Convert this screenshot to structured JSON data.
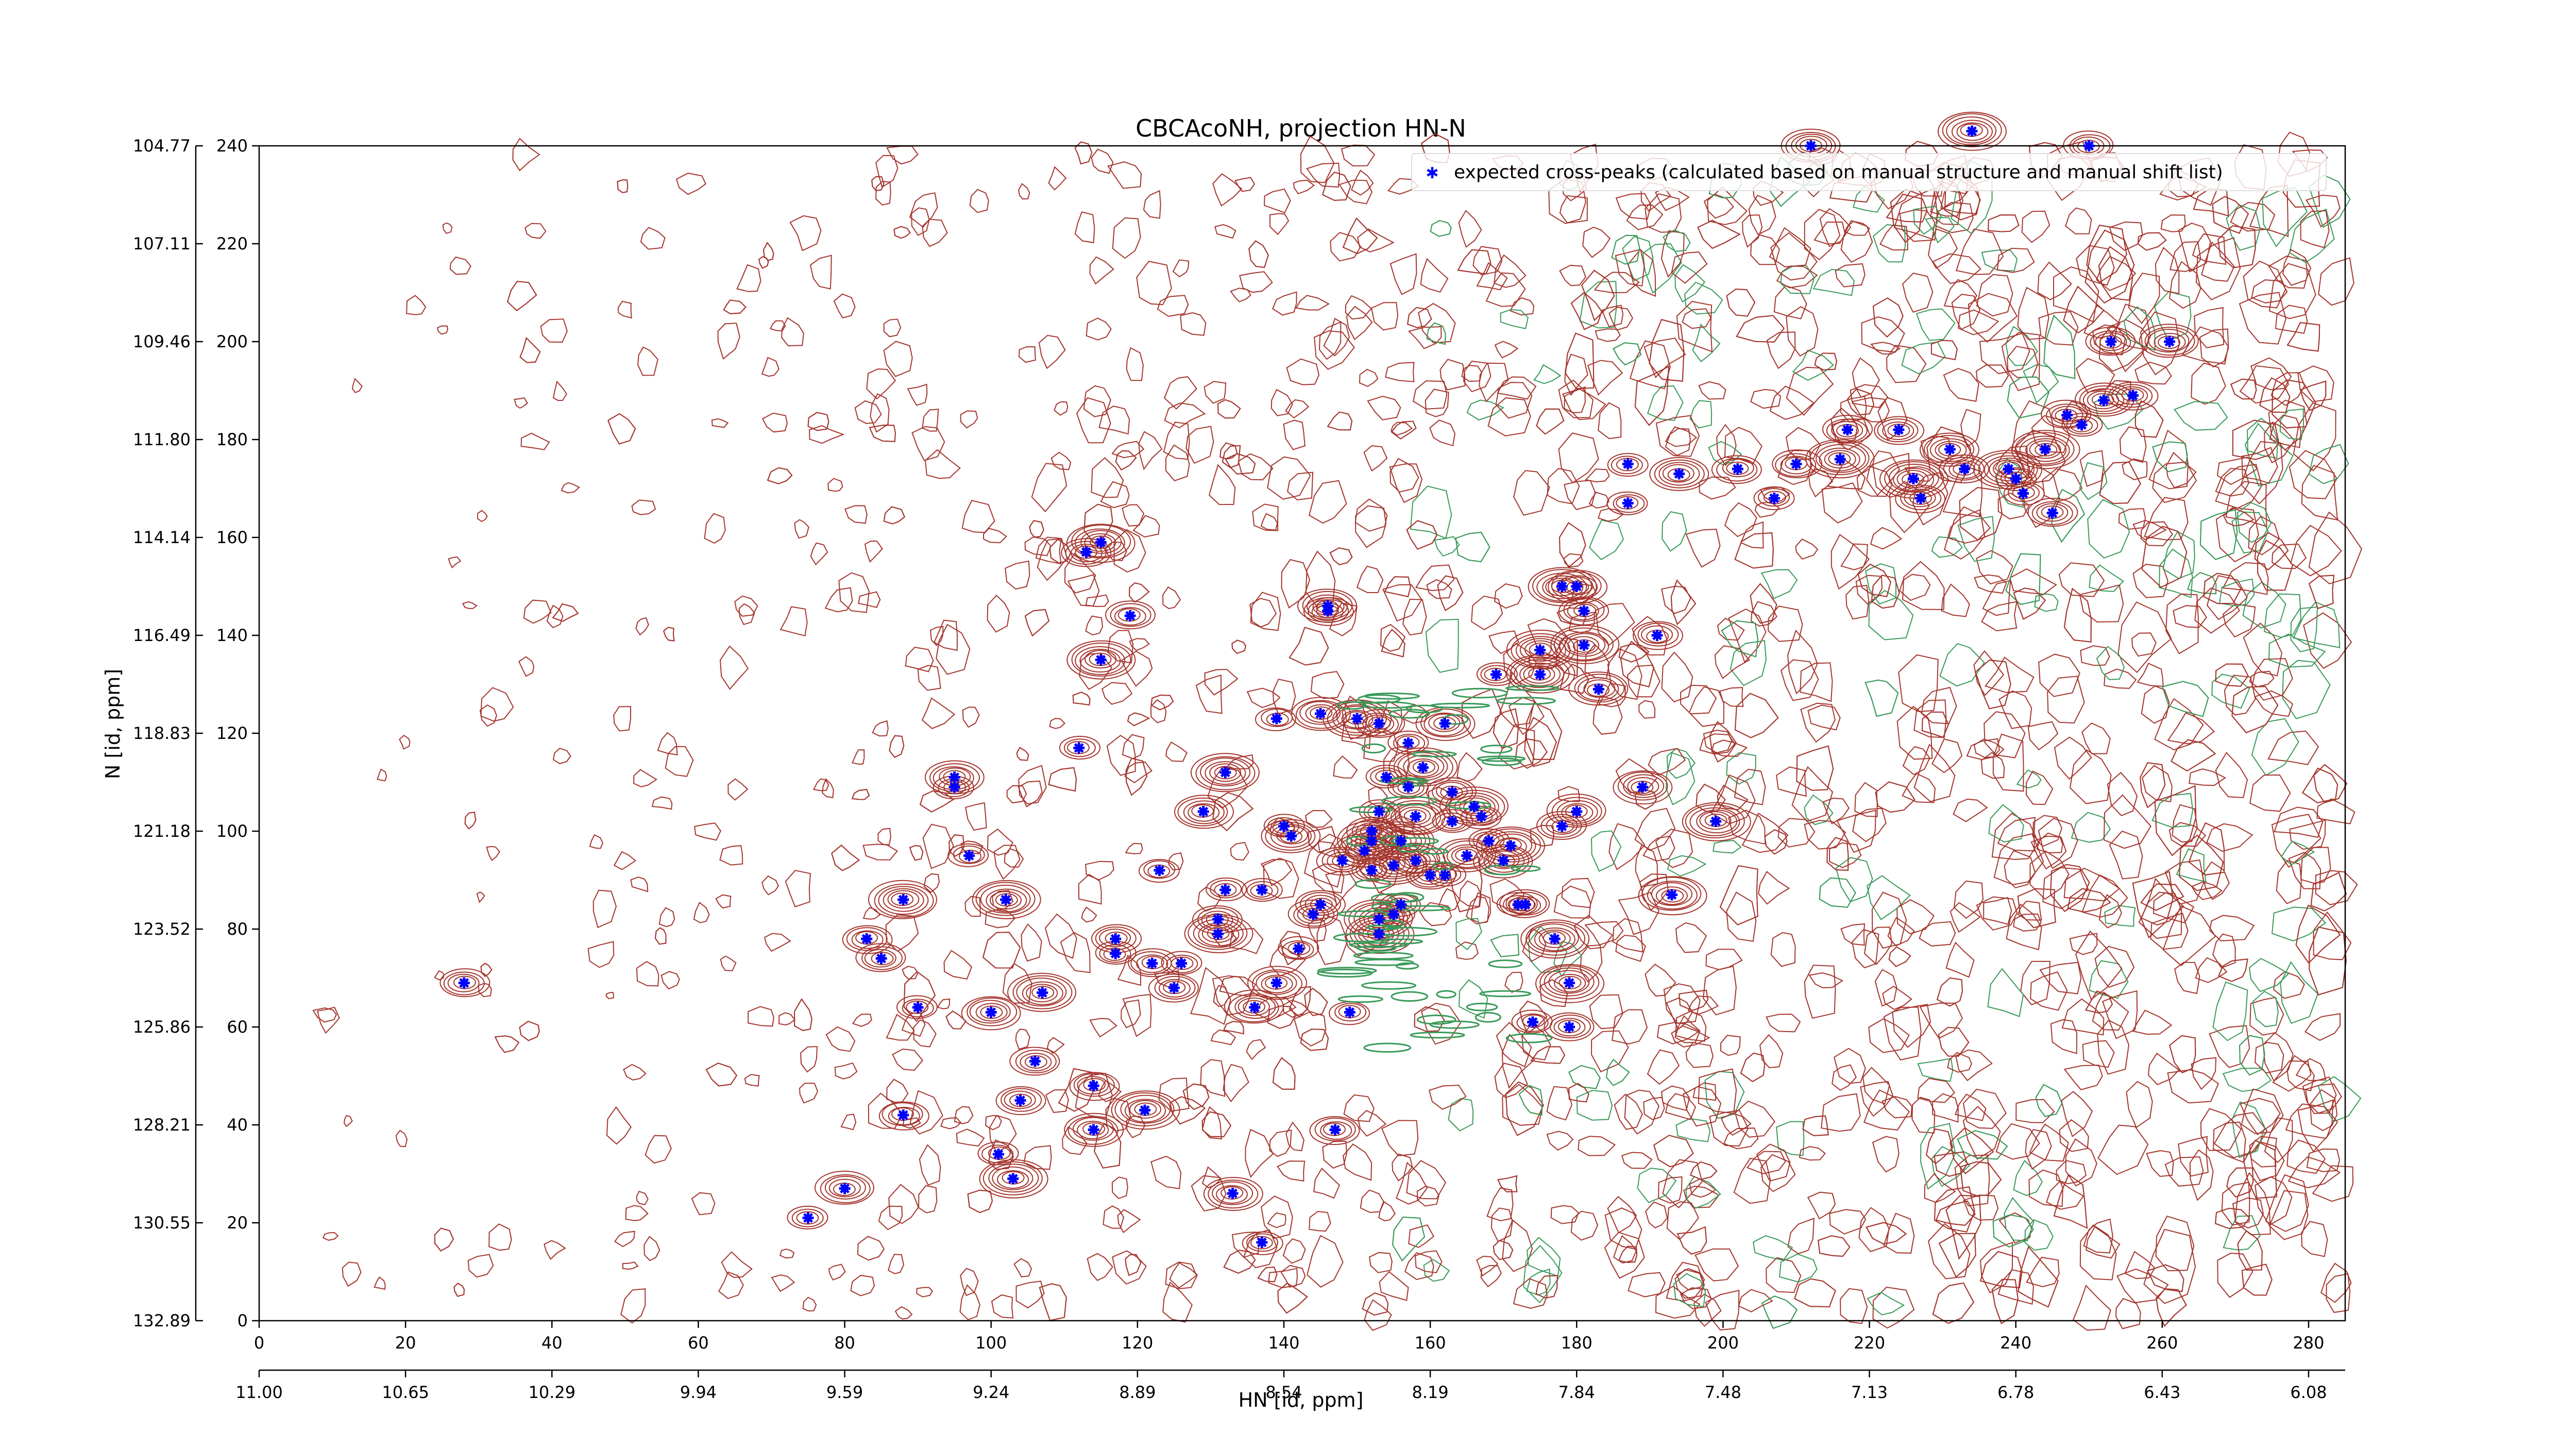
{
  "chart_data": {
    "type": "scatter",
    "title": "CBCAcoNH, projection HN-N",
    "xlabel": "HN [id, ppm]",
    "ylabel": "N [id, ppm]",
    "xlim": [
      0,
      285
    ],
    "ylim": [
      0,
      240
    ],
    "x_ticks": [
      0,
      20,
      40,
      60,
      80,
      100,
      120,
      140,
      160,
      180,
      200,
      220,
      240,
      260,
      280
    ],
    "y_ticks": [
      0,
      20,
      40,
      60,
      80,
      100,
      120,
      140,
      160,
      180,
      200,
      220,
      240
    ],
    "hn_ppm_ticks": [
      "11.00",
      "10.65",
      "10.29",
      "9.94",
      "9.59",
      "9.24",
      "8.89",
      "8.54",
      "8.19",
      "7.84",
      "7.48",
      "7.13",
      "6.78",
      "6.43",
      "6.08"
    ],
    "n_ppm_ticks": [
      "132.89",
      "130.55",
      "128.21",
      "125.86",
      "123.52",
      "121.18",
      "118.83",
      "116.49",
      "114.14",
      "111.80",
      "109.46",
      "107.11",
      "104.77"
    ],
    "legend": {
      "position": "top-right",
      "entries": [
        "expected cross-peaks (calculated based on manual structure and manual shift list)"
      ]
    },
    "colors": {
      "peaks": "#0000ff",
      "contour_positive": "#a5362e",
      "contour_negative": "#3a9a5a"
    },
    "series": [
      {
        "name": "expected cross-peaks (calculated based on manual structure and manual shift list)",
        "points": [
          [
            28,
            69
          ],
          [
            75,
            21
          ],
          [
            80,
            27
          ],
          [
            83,
            78
          ],
          [
            85,
            74
          ],
          [
            88,
            42
          ],
          [
            88,
            86
          ],
          [
            90,
            64
          ],
          [
            95,
            109
          ],
          [
            95,
            111
          ],
          [
            97,
            95
          ],
          [
            100,
            63
          ],
          [
            101,
            34
          ],
          [
            103,
            29
          ],
          [
            102,
            86
          ],
          [
            104,
            45
          ],
          [
            106,
            53
          ],
          [
            107,
            67
          ],
          [
            112,
            117
          ],
          [
            113,
            157
          ],
          [
            114,
            48
          ],
          [
            114,
            39
          ],
          [
            115,
            135
          ],
          [
            115,
            159
          ],
          [
            117,
            75
          ],
          [
            117,
            78
          ],
          [
            119,
            144
          ],
          [
            121,
            43
          ],
          [
            122,
            73
          ],
          [
            123,
            92
          ],
          [
            125,
            68
          ],
          [
            126,
            73
          ],
          [
            129,
            104
          ],
          [
            131,
            79
          ],
          [
            131,
            82
          ],
          [
            132,
            88
          ],
          [
            132,
            112
          ],
          [
            133,
            26
          ],
          [
            136,
            64
          ],
          [
            137,
            16
          ],
          [
            137,
            88
          ],
          [
            139,
            69
          ],
          [
            139,
            123
          ],
          [
            140,
            101
          ],
          [
            141,
            99
          ],
          [
            142,
            76
          ],
          [
            144,
            83
          ],
          [
            145,
            85
          ],
          [
            145,
            124
          ],
          [
            146,
            145
          ],
          [
            146,
            146
          ],
          [
            147,
            39
          ],
          [
            148,
            94
          ],
          [
            149,
            63
          ],
          [
            150,
            123
          ],
          [
            151,
            96
          ],
          [
            152,
            98
          ],
          [
            152,
            92
          ],
          [
            152,
            100
          ],
          [
            153,
            104
          ],
          [
            153,
            122
          ],
          [
            153,
            82
          ],
          [
            153,
            79
          ],
          [
            154,
            111
          ],
          [
            155,
            83
          ],
          [
            155,
            93
          ],
          [
            156,
            85
          ],
          [
            156,
            98
          ],
          [
            157,
            109
          ],
          [
            157,
            118
          ],
          [
            158,
            94
          ],
          [
            158,
            103
          ],
          [
            159,
            113
          ],
          [
            160,
            91
          ],
          [
            162,
            91
          ],
          [
            162,
            122
          ],
          [
            163,
            102
          ],
          [
            163,
            108
          ],
          [
            165,
            95
          ],
          [
            166,
            105
          ],
          [
            167,
            103
          ],
          [
            168,
            98
          ],
          [
            169,
            132
          ],
          [
            170,
            94
          ],
          [
            171,
            97
          ],
          [
            172,
            85
          ],
          [
            173,
            85
          ],
          [
            174,
            61
          ],
          [
            175,
            132
          ],
          [
            175,
            137
          ],
          [
            177,
            78
          ],
          [
            178,
            101
          ],
          [
            178,
            150
          ],
          [
            179,
            69
          ],
          [
            179,
            60
          ],
          [
            180,
            104
          ],
          [
            180,
            150
          ],
          [
            181,
            145
          ],
          [
            181,
            138
          ],
          [
            183,
            129
          ],
          [
            187,
            175
          ],
          [
            187,
            167
          ],
          [
            189,
            109
          ],
          [
            191,
            140
          ],
          [
            193,
            87
          ],
          [
            194,
            173
          ],
          [
            199,
            102
          ],
          [
            202,
            174
          ],
          [
            207,
            168
          ],
          [
            210,
            175
          ],
          [
            212,
            240
          ],
          [
            216,
            176
          ],
          [
            217,
            182
          ],
          [
            224,
            182
          ],
          [
            226,
            172
          ],
          [
            227,
            168
          ],
          [
            231,
            178
          ],
          [
            233,
            174
          ],
          [
            234,
            243
          ],
          [
            239,
            174
          ],
          [
            240,
            172
          ],
          [
            241,
            169
          ],
          [
            244,
            178
          ],
          [
            245,
            165
          ],
          [
            247,
            185
          ],
          [
            249,
            183
          ],
          [
            250,
            240
          ],
          [
            252,
            188
          ],
          [
            253,
            200
          ],
          [
            256,
            189
          ],
          [
            261,
            200
          ]
        ]
      }
    ]
  }
}
